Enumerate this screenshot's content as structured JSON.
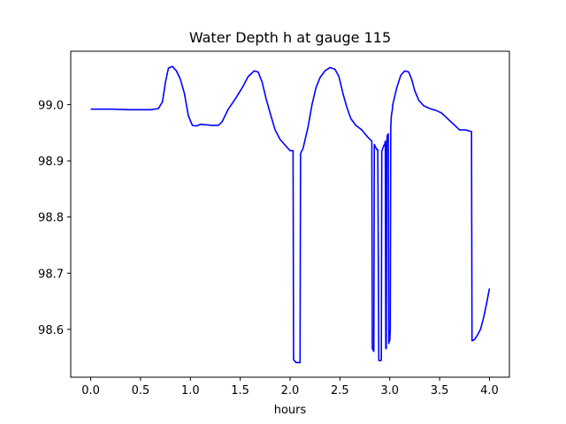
{
  "chart_data": {
    "type": "line",
    "title": "Water Depth h at gauge 115",
    "xlabel": "hours",
    "ylabel": "",
    "xlim": [
      -0.2,
      4.2
    ],
    "ylim": [
      98.515,
      99.095
    ],
    "xticks": [
      0.0,
      0.5,
      1.0,
      1.5,
      2.0,
      2.5,
      3.0,
      3.5,
      4.0
    ],
    "xtick_labels": [
      "0.0",
      "0.5",
      "1.0",
      "1.5",
      "2.0",
      "2.5",
      "3.0",
      "3.5",
      "4.0"
    ],
    "yticks": [
      98.6,
      98.7,
      98.8,
      98.9,
      99.0
    ],
    "ytick_labels": [
      "98.6",
      "98.7",
      "98.8",
      "98.9",
      "99.0"
    ],
    "grid": false,
    "series": [
      {
        "color": "#0000ff",
        "x": [
          0.0,
          0.2,
          0.4,
          0.6,
          0.68,
          0.72,
          0.75,
          0.78,
          0.82,
          0.86,
          0.9,
          0.94,
          0.98,
          1.02,
          1.06,
          1.1,
          1.16,
          1.22,
          1.28,
          1.32,
          1.38,
          1.45,
          1.52,
          1.58,
          1.64,
          1.68,
          1.72,
          1.76,
          1.8,
          1.85,
          1.9,
          1.95,
          2.0,
          2.03,
          2.035,
          2.06,
          2.08,
          2.1,
          2.105,
          2.13,
          2.18,
          2.22,
          2.26,
          2.3,
          2.35,
          2.4,
          2.45,
          2.49,
          2.53,
          2.57,
          2.61,
          2.66,
          2.72,
          2.78,
          2.82,
          2.825,
          2.84,
          2.845,
          2.87,
          2.88,
          2.89,
          2.9,
          2.915,
          2.92,
          2.94,
          2.95,
          2.955,
          2.96,
          2.965,
          2.97,
          2.975,
          2.985,
          2.99,
          2.995,
          3.0,
          3.005,
          3.01,
          3.015,
          3.02,
          3.025,
          3.03,
          3.07,
          3.11,
          3.15,
          3.19,
          3.22,
          3.25,
          3.29,
          3.34,
          3.4,
          3.46,
          3.52,
          3.58,
          3.64,
          3.7,
          3.76,
          3.82,
          3.825,
          3.83,
          3.85,
          3.88,
          3.91,
          3.94,
          3.97,
          4.0
        ],
        "y": [
          98.992,
          98.992,
          98.991,
          98.991,
          98.993,
          99.005,
          99.04,
          99.065,
          99.068,
          99.06,
          99.045,
          99.02,
          98.98,
          98.963,
          98.962,
          98.965,
          98.964,
          98.963,
          98.963,
          98.97,
          98.992,
          99.01,
          99.03,
          99.05,
          99.06,
          99.058,
          99.04,
          99.01,
          98.985,
          98.955,
          98.938,
          98.928,
          98.918,
          98.918,
          98.546,
          98.541,
          98.541,
          98.541,
          98.913,
          98.922,
          98.96,
          99.0,
          99.03,
          99.048,
          99.06,
          99.066,
          99.063,
          99.05,
          99.02,
          98.995,
          98.975,
          98.963,
          98.955,
          98.942,
          98.935,
          98.566,
          98.561,
          98.929,
          98.92,
          98.92,
          98.545,
          98.544,
          98.545,
          98.917,
          98.927,
          98.93,
          98.935,
          98.566,
          98.566,
          98.932,
          98.945,
          98.948,
          98.575,
          98.58,
          98.58,
          98.6,
          98.96,
          98.978,
          98.985,
          98.99,
          99.0,
          99.03,
          99.052,
          99.06,
          99.058,
          99.045,
          99.025,
          99.008,
          98.998,
          98.993,
          98.99,
          98.985,
          98.975,
          98.965,
          98.955,
          98.955,
          98.952,
          98.58,
          98.58,
          98.582,
          98.59,
          98.6,
          98.62,
          98.645,
          98.673
        ]
      }
    ]
  }
}
